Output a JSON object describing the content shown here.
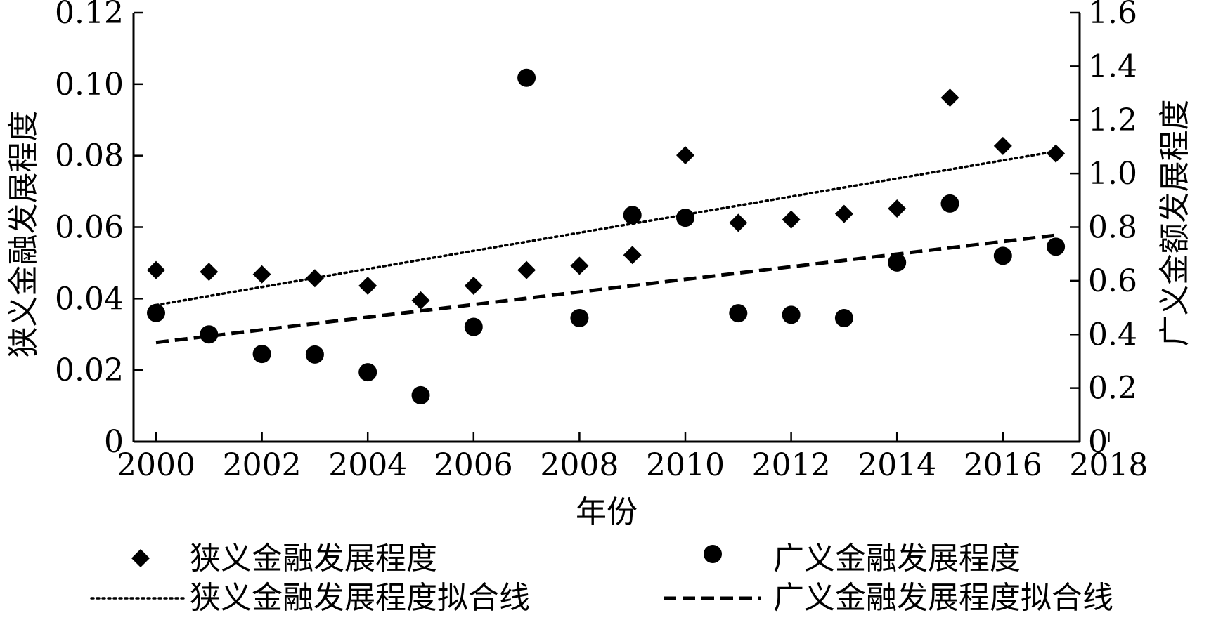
{
  "chart_data": {
    "type": "scatter",
    "title": "",
    "xlabel": "年份",
    "ylabel_left": "狭义金融发展程度",
    "ylabel_right": "广义金额发展程度",
    "x_ticks": [
      "2000",
      "2002",
      "2004",
      "2006",
      "2008",
      "2010",
      "2012",
      "2014",
      "2016",
      "2018"
    ],
    "xlim": [
      1999.6,
      2018.0
    ],
    "y_left_ticks": [
      "0",
      "0.02",
      "0.04",
      "0.06",
      "0.08",
      "0.10",
      "0.12"
    ],
    "y_left_lim": [
      0,
      0.12
    ],
    "y_right_ticks": [
      "0",
      "0.2",
      "0.4",
      "0.6",
      "0.8",
      "1.0",
      "1.2",
      "1.4",
      "1.6"
    ],
    "y_right_lim": [
      0,
      1.6
    ],
    "grid": false,
    "legend_position": "bottom",
    "series": [
      {
        "name": "狭义金融发展程度",
        "axis": "left",
        "marker": "diamond",
        "x": [
          2000,
          2001,
          2002,
          2003,
          2004,
          2005,
          2006,
          2007,
          2008,
          2009,
          2010,
          2011,
          2012,
          2013,
          2014,
          2015,
          2016,
          2017
        ],
        "y": [
          0.048,
          0.0475,
          0.0468,
          0.0457,
          0.0436,
          0.0395,
          0.0436,
          0.048,
          0.0492,
          0.0522,
          0.0801,
          0.0612,
          0.0621,
          0.0637,
          0.0652,
          0.0962,
          0.0827,
          0.0806
        ]
      },
      {
        "name": "广义金融发展程度",
        "axis": "right",
        "marker": "circle",
        "x": [
          2000,
          2001,
          2002,
          2003,
          2004,
          2005,
          2006,
          2007,
          2008,
          2009,
          2010,
          2011,
          2012,
          2013,
          2014,
          2015,
          2016,
          2017
        ],
        "y": [
          0.48,
          0.4,
          0.327,
          0.325,
          0.259,
          0.173,
          0.428,
          1.357,
          0.461,
          0.845,
          0.835,
          0.479,
          0.473,
          0.461,
          0.668,
          0.888,
          0.693,
          0.727
        ]
      },
      {
        "name": "狭义金融发展程度拟合线",
        "axis": "left",
        "style": "dotted",
        "x": [
          2000,
          2017
        ],
        "y": [
          0.0382,
          0.0812
        ]
      },
      {
        "name": "广义金融发展程度拟合线",
        "axis": "right",
        "style": "dashed",
        "x": [
          2000,
          2017
        ],
        "y": [
          0.37,
          0.77
        ]
      }
    ]
  },
  "colors": {
    "ink": "#000000",
    "background": "#ffffff"
  }
}
